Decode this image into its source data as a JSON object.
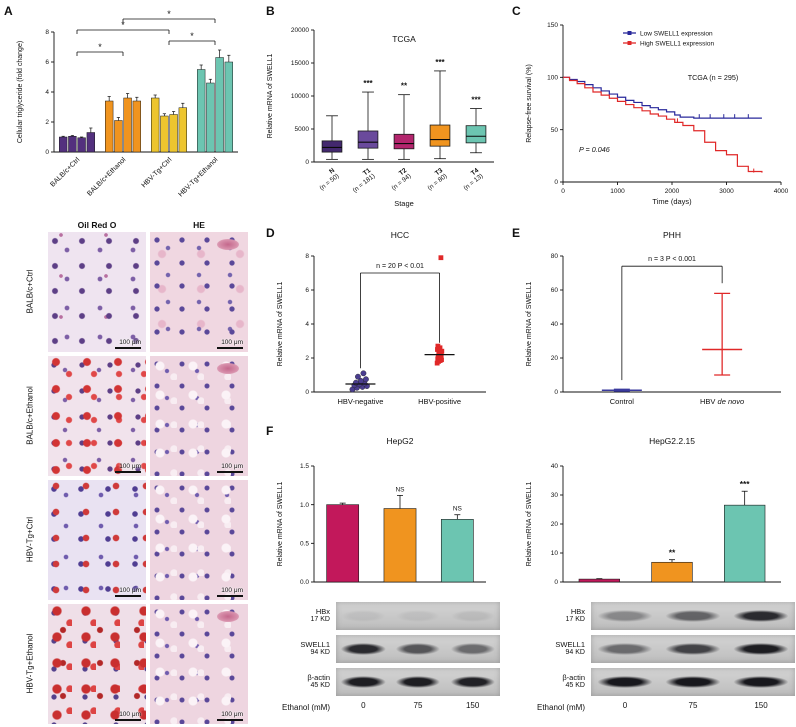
{
  "panels": {
    "A": "A",
    "B": "B",
    "C": "C",
    "D": "D",
    "E": "E",
    "F": "F"
  },
  "histology": {
    "col_headers": [
      "Oil Red O",
      "HE"
    ],
    "row_labels": [
      "BALB/c+Ctrl",
      "BALB/c+Ethanol",
      "HBV-Tg+Ctrl",
      "HBV-Tg+Ethanol"
    ],
    "scale_label": "100 μm"
  },
  "western": {
    "left": {
      "rows": [
        {
          "name": "HBx",
          "kd": "17 KD",
          "bands": [
            0.06,
            0.06,
            0.08
          ]
        },
        {
          "name": "SWELL1",
          "kd": "94 KD",
          "bands": [
            0.85,
            0.62,
            0.5
          ]
        },
        {
          "name": "β-actin",
          "kd": "45 KD",
          "bands": [
            0.92,
            0.92,
            0.9
          ]
        }
      ],
      "xaxis": {
        "label": "Ethanol (mM)",
        "values": [
          "0",
          "75",
          "150"
        ]
      }
    },
    "right": {
      "rows": [
        {
          "name": "HBx",
          "kd": "17 KD",
          "bands": [
            0.35,
            0.55,
            0.85
          ]
        },
        {
          "name": "SWELL1",
          "kd": "94 KD",
          "bands": [
            0.5,
            0.72,
            0.92
          ]
        },
        {
          "name": "β-actin",
          "kd": "45 KD",
          "bands": [
            0.95,
            0.95,
            0.95
          ]
        }
      ],
      "xaxis": {
        "label": "Ethanol (mM)",
        "values": [
          "0",
          "75",
          "150"
        ]
      }
    }
  },
  "chart_data": [
    {
      "panel": "A",
      "type": "grouped_bar",
      "ylabel": "Cellular triglyceride (fold change)",
      "ylim": [
        0,
        8
      ],
      "yticks": [
        0,
        2,
        4,
        6,
        8
      ],
      "groups": [
        "BALB/c+Ctrl",
        "BALB/c+Ethanol",
        "HBV-Tg+Ctrl",
        "HBV-Tg+Ethanol"
      ],
      "group_colors": [
        "#53307e",
        "#f0941f",
        "#edc52e",
        "#6cc5b1"
      ],
      "series_values": [
        [
          1.0,
          1.05,
          0.95,
          1.3
        ],
        [
          3.4,
          2.1,
          3.6,
          3.4
        ],
        [
          3.6,
          2.4,
          2.5,
          2.95
        ],
        [
          5.5,
          4.6,
          6.3,
          6.0
        ]
      ],
      "errors": [
        [
          0.05,
          0.05,
          0.05,
          0.3
        ],
        [
          0.3,
          0.2,
          0.3,
          0.25
        ],
        [
          0.2,
          0.15,
          0.2,
          0.3
        ],
        [
          0.3,
          0.25,
          0.5,
          0.45
        ]
      ],
      "brackets": [
        {
          "from": 0,
          "to": 1,
          "level": 1,
          "label": "*"
        },
        {
          "from": 2,
          "to": 3,
          "level": 2,
          "label": "*"
        },
        {
          "from": 0,
          "to": 2,
          "level": 3,
          "label": "*"
        },
        {
          "from": 1,
          "to": 3,
          "level": 4,
          "label": "*"
        }
      ]
    },
    {
      "panel": "B",
      "type": "box",
      "title": "TCGA",
      "ylabel": "Relative mRNA of SWELL1",
      "xlabel": "Stage",
      "ylim": [
        0,
        20000
      ],
      "yticks": [
        0,
        5000,
        10000,
        15000,
        20000
      ],
      "categories": [
        "N",
        "T1",
        "T2",
        "T3",
        "T4"
      ],
      "ns": [
        "(n = 50)",
        "(n = 181)",
        "(n = 94)",
        "(n = 80)",
        "(n = 13)"
      ],
      "colors": [
        "#43286e",
        "#6a4a9c",
        "#b3256d",
        "#f0941f",
        "#6cc5b1"
      ],
      "boxes": [
        {
          "low": 400,
          "q1": 1500,
          "med": 2200,
          "q3": 3200,
          "high": 7000,
          "sig": ""
        },
        {
          "low": 400,
          "q1": 2100,
          "med": 3000,
          "q3": 4700,
          "high": 10600,
          "sig": "***"
        },
        {
          "low": 400,
          "q1": 2000,
          "med": 2800,
          "q3": 4200,
          "high": 10200,
          "sig": "**"
        },
        {
          "low": 500,
          "q1": 2400,
          "med": 3400,
          "q3": 5600,
          "high": 13800,
          "sig": "***"
        },
        {
          "low": 1400,
          "q1": 2900,
          "med": 3900,
          "q3": 5500,
          "high": 8100,
          "sig": "***"
        }
      ]
    },
    {
      "panel": "C",
      "type": "km",
      "ylabel": "Relapse-free survival (%)",
      "xlabel": "Time (days)",
      "ylim": [
        0,
        150
      ],
      "yticks": [
        0,
        50,
        100,
        150
      ],
      "xlim": [
        0,
        4000
      ],
      "xticks": [
        0,
        1000,
        2000,
        3000,
        4000
      ],
      "note": "TCGA (n = 295)",
      "p_text": "P = 0.046",
      "series": [
        {
          "name": "Low SWELL1 expression",
          "color": "#28289b",
          "points": [
            [
              0,
              100
            ],
            [
              120,
              98
            ],
            [
              260,
              96
            ],
            [
              400,
              93
            ],
            [
              550,
              90
            ],
            [
              700,
              87
            ],
            [
              850,
              84
            ],
            [
              1000,
              81
            ],
            [
              1150,
              78
            ],
            [
              1300,
              76
            ],
            [
              1450,
              73
            ],
            [
              1600,
              71
            ],
            [
              1750,
              69
            ],
            [
              1900,
              67
            ],
            [
              2050,
              64
            ],
            [
              2150,
              62
            ],
            [
              2400,
              61
            ],
            [
              3650,
              61
            ]
          ],
          "censors": [
            [
              2500,
              61
            ],
            [
              2700,
              61
            ],
            [
              2950,
              61
            ],
            [
              3150,
              61
            ],
            [
              3400,
              61
            ]
          ]
        },
        {
          "name": "High SWELL1 expression",
          "color": "#e02828",
          "points": [
            [
              0,
              100
            ],
            [
              120,
              97
            ],
            [
              260,
              94
            ],
            [
              400,
              90
            ],
            [
              550,
              86
            ],
            [
              700,
              83
            ],
            [
              850,
              80
            ],
            [
              1000,
              77
            ],
            [
              1150,
              74
            ],
            [
              1300,
              71
            ],
            [
              1450,
              68
            ],
            [
              1600,
              65
            ],
            [
              1750,
              63
            ],
            [
              1900,
              60
            ],
            [
              2050,
              57
            ],
            [
              2200,
              54
            ],
            [
              2400,
              49
            ],
            [
              2600,
              38
            ],
            [
              2800,
              30
            ],
            [
              3000,
              26
            ],
            [
              3200,
              15
            ],
            [
              3400,
              10
            ],
            [
              3650,
              9
            ]
          ],
          "censors": [
            [
              2100,
              57
            ],
            [
              3500,
              9
            ]
          ]
        }
      ]
    },
    {
      "panel": "D",
      "type": "scatter",
      "title": "HCC",
      "ylabel": "Relative mRNA of SWELL1",
      "ylim": [
        0,
        8
      ],
      "yticks": [
        0,
        2,
        4,
        6,
        8
      ],
      "cats": [
        {
          "label": "HBV-negative",
          "pos": 0.27,
          "marker": "circle",
          "color": "#4a3d8f",
          "spread": 1,
          "values": [
            0.15,
            0.25,
            0.3,
            0.35,
            0.4,
            0.45,
            0.5,
            0.55,
            0.65,
            0.75,
            0.9,
            1.1
          ],
          "median": 0.47
        },
        {
          "label": "HBV-positive",
          "pos": 0.73,
          "marker": "square",
          "color": "#e02828",
          "spread": 0.3,
          "values": [
            1.7,
            1.8,
            1.85,
            1.9,
            1.95,
            2.0,
            2.05,
            2.1,
            2.15,
            2.2,
            2.25,
            2.3,
            2.4,
            2.5,
            2.6,
            2.7,
            7.9
          ],
          "median": 2.2
        }
      ],
      "bracket": {
        "y": 7.0,
        "left_to": 1.4,
        "right_to": 2.9,
        "text": "n = 20   P < 0.01"
      }
    },
    {
      "panel": "E",
      "type": "scatter",
      "title": "PHH",
      "ylabel": "Relative mRNA of SWELL1",
      "ylim": [
        0,
        80
      ],
      "yticks": [
        0,
        20,
        40,
        60,
        80
      ],
      "cats": [
        {
          "label": "Control",
          "pos": 0.27,
          "color": "#3a3a9e",
          "mean": 1,
          "low": 0.5,
          "high": 1.6
        },
        {
          "label": [
            {
              "t": "HBV "
            },
            {
              "t": "de novo",
              "i": true
            }
          ],
          "pos": 0.73,
          "color": "#e02828",
          "mean": 25,
          "low": 10,
          "high": 58
        }
      ],
      "bracket": {
        "y": 74,
        "left_to": 7,
        "right_to": 64,
        "text": "n = 3   P < 0.001"
      }
    },
    {
      "panel": "F",
      "type": "bar",
      "title": "HepG2",
      "ylabel": "Relative mRNA of SWELL1",
      "ylim": [
        0,
        1.5
      ],
      "yticks": [
        "0.0",
        "0.5",
        "1.0",
        "1.5"
      ],
      "values": [
        1.0,
        0.95,
        0.81
      ],
      "errors": [
        0.02,
        0.17,
        0.06
      ],
      "sig": [
        "",
        "NS",
        "NS"
      ],
      "colors": [
        "#c2185b",
        "#f0941f",
        "#6cc5b1"
      ]
    },
    {
      "panel": "F",
      "type": "bar",
      "title": "HepG2.2.15",
      "ylabel": "Relative mRNA of SWELL1",
      "ylim": [
        0,
        40
      ],
      "yticks": [
        0,
        10,
        20,
        30,
        40
      ],
      "values": [
        1.0,
        6.8,
        26.5
      ],
      "errors": [
        0.15,
        0.9,
        4.8
      ],
      "sig": [
        "",
        "**",
        "***"
      ],
      "colors": [
        "#c2185b",
        "#f0941f",
        "#6cc5b1"
      ]
    }
  ]
}
